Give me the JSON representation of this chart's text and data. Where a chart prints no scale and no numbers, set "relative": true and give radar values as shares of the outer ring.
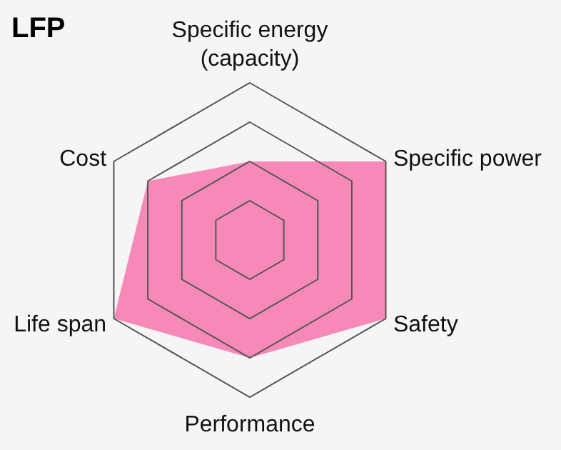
{
  "chart_data": {
    "type": "radar",
    "title": "LFP",
    "relative": true,
    "grid": true,
    "categories": [
      "Specific energy (capacity)",
      "Specific power",
      "Safety",
      "Performance",
      "Life span",
      "Cost"
    ],
    "series": [
      {
        "color": "#f783b5",
        "values": [
          0.5,
          1,
          1,
          0.75,
          1,
          0.75
        ]
      }
    ]
  }
}
